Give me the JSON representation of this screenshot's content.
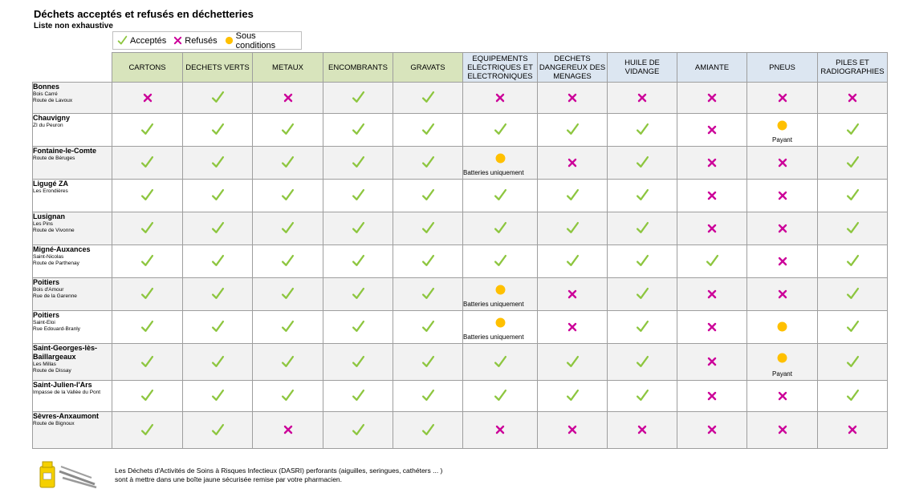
{
  "title": "Déchets acceptés et refusés en déchetteries",
  "subtitle": "Liste non exhaustive",
  "legend": {
    "accepted": "Acceptés",
    "refused": "Refusés",
    "conditional": "Sous conditions"
  },
  "colors": {
    "accepted": "#8dc63f",
    "refused": "#cc0099",
    "conditional": "#ffc000"
  },
  "categories": [
    {
      "label": "CARTONS",
      "group": "green"
    },
    {
      "label": "DECHETS VERTS",
      "group": "green"
    },
    {
      "label": "METAUX",
      "group": "green"
    },
    {
      "label": "ENCOMBRANTS",
      "group": "green"
    },
    {
      "label": "GRAVATS",
      "group": "green"
    },
    {
      "label": "EQUIPEMENTS ELECTRIQUES ET ELECTRONIQUES",
      "group": "blue"
    },
    {
      "label": "DECHETS DANGEREUX DES MENAGES",
      "group": "blue"
    },
    {
      "label": "HUILE DE VIDANGE",
      "group": "blue"
    },
    {
      "label": "AMIANTE",
      "group": "blue"
    },
    {
      "label": "PNEUS",
      "group": "blue"
    },
    {
      "label": "PILES ET RADIOGRAPHIES",
      "group": "blue"
    }
  ],
  "sites": [
    {
      "name": "Bonnes",
      "address": [
        "Bois Carré",
        "Route de Lavoux"
      ],
      "status": [
        "x",
        "v",
        "x",
        "v",
        "v",
        "x",
        "x",
        "x",
        "x",
        "x",
        "x"
      ],
      "notes": {}
    },
    {
      "name": "Chauvigny",
      "address": [
        "ZI du Peuron"
      ],
      "status": [
        "v",
        "v",
        "v",
        "v",
        "v",
        "v",
        "v",
        "v",
        "x",
        "o",
        "v"
      ],
      "notes": {
        "9": "Payant"
      }
    },
    {
      "name": "Fontaine-le-Comte",
      "address": [
        "Route de Béruges"
      ],
      "status": [
        "v",
        "v",
        "v",
        "v",
        "v",
        "o",
        "x",
        "v",
        "x",
        "x",
        "v"
      ],
      "notes": {
        "5": "Batteries uniquement"
      }
    },
    {
      "name": "Ligugé ZA",
      "address": [
        "Les Erondières"
      ],
      "status": [
        "v",
        "v",
        "v",
        "v",
        "v",
        "v",
        "v",
        "v",
        "x",
        "x",
        "v"
      ],
      "notes": {}
    },
    {
      "name": "Lusignan",
      "address": [
        "Les Pins",
        "Route de Vivonne"
      ],
      "status": [
        "v",
        "v",
        "v",
        "v",
        "v",
        "v",
        "v",
        "v",
        "x",
        "x",
        "v"
      ],
      "notes": {}
    },
    {
      "name": "Migné-Auxances",
      "address": [
        "Saint-Nicolas",
        "Route de Parthenay"
      ],
      "status": [
        "v",
        "v",
        "v",
        "v",
        "v",
        "v",
        "v",
        "v",
        "v",
        "x",
        "v"
      ],
      "notes": {}
    },
    {
      "name": "Poitiers",
      "address": [
        "Bois d'Amour",
        "Rue de la Garenne"
      ],
      "status": [
        "v",
        "v",
        "v",
        "v",
        "v",
        "o",
        "x",
        "v",
        "x",
        "x",
        "v"
      ],
      "notes": {
        "5": "Batteries uniquement"
      }
    },
    {
      "name": "Poitiers",
      "address": [
        "Saint-Eloi",
        "Rue Edouard-Branly"
      ],
      "status": [
        "v",
        "v",
        "v",
        "v",
        "v",
        "o",
        "x",
        "v",
        "x",
        "o",
        "v"
      ],
      "notes": {
        "5": "Batteries uniquement"
      }
    },
    {
      "name": "Saint-Georges-lès-Baillargeaux",
      "address": [
        "Les Millas",
        "Route de Dissay"
      ],
      "status": [
        "v",
        "v",
        "v",
        "v",
        "v",
        "v",
        "v",
        "v",
        "x",
        "o",
        "v"
      ],
      "notes": {
        "9": "Payant"
      }
    },
    {
      "name": "Saint-Julien-l'Ars",
      "address": [
        "Impasse de la Vallée du Pont"
      ],
      "status": [
        "v",
        "v",
        "v",
        "v",
        "v",
        "v",
        "v",
        "v",
        "x",
        "x",
        "v"
      ],
      "notes": {}
    },
    {
      "name": "Sèvres-Anxaumont",
      "address": [
        "Route de Bignoux"
      ],
      "status": [
        "v",
        "v",
        "x",
        "v",
        "v",
        "x",
        "x",
        "x",
        "x",
        "x",
        "x"
      ],
      "notes": {}
    }
  ],
  "footer": {
    "line1": "Les Déchets d'Activités de Soins à Risques Infectieux (DASRI) perforants (aiguilles, seringues, cathéters ... )",
    "line2": "sont à mettre dans une boîte jaune sécurisée remise par votre pharmacien."
  }
}
